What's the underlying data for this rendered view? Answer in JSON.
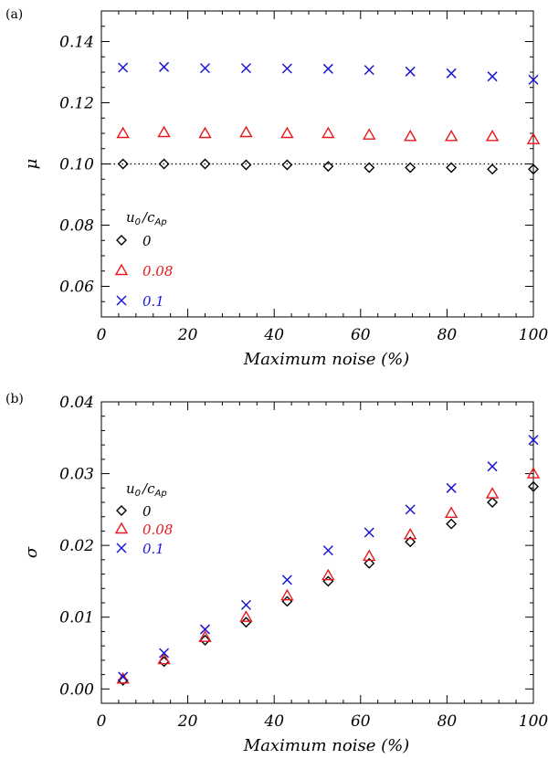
{
  "chart_data": [
    {
      "type": "scatter",
      "panel_label": "(a)",
      "xlabel": "Maximum noise (%)",
      "ylabel": "μ",
      "xlim": [
        0,
        100
      ],
      "ylim": [
        0.05,
        0.15
      ],
      "xticks": [
        0,
        20,
        40,
        60,
        80,
        100
      ],
      "yticks": [
        0.06,
        0.08,
        0.1,
        0.12,
        0.14
      ],
      "ytick_labels": [
        "0.06",
        "0.08",
        "0.10",
        "0.12",
        "0.14"
      ],
      "reference_line": {
        "y": 0.1,
        "style": "dotted"
      },
      "legend": {
        "title_main": "u",
        "title_sub0": "0",
        "title_slash": "/",
        "title_c": "c",
        "title_subAp": "Ap",
        "placement": "lower-left"
      },
      "x": [
        5,
        14.5,
        24,
        33.5,
        43,
        52.5,
        62,
        71.5,
        81,
        90.5,
        100
      ],
      "series": [
        {
          "name": "0",
          "marker": "diamond",
          "color": "#000000",
          "values": [
            0.1,
            0.1,
            0.1,
            0.0997,
            0.0997,
            0.0992,
            0.0988,
            0.0988,
            0.0988,
            0.0983,
            0.0983
          ]
        },
        {
          "name": "0.08",
          "marker": "triangle",
          "color": "#e8191c",
          "values": [
            0.11,
            0.1103,
            0.11,
            0.1103,
            0.11,
            0.11,
            0.1095,
            0.109,
            0.109,
            0.109,
            0.108
          ]
        },
        {
          "name": "0.1",
          "marker": "cross",
          "color": "#1a16d4",
          "values": [
            0.1315,
            0.1317,
            0.1313,
            0.1313,
            0.1312,
            0.1311,
            0.1307,
            0.1302,
            0.1296,
            0.1286,
            0.1275
          ]
        }
      ]
    },
    {
      "type": "scatter",
      "panel_label": "(b)",
      "xlabel": "Maximum noise (%)",
      "ylabel": "σ",
      "xlim": [
        0,
        100
      ],
      "ylim": [
        -0.002,
        0.04
      ],
      "xticks": [
        0,
        20,
        40,
        60,
        80,
        100
      ],
      "yticks": [
        0.0,
        0.01,
        0.02,
        0.03,
        0.04
      ],
      "ytick_labels": [
        "0.00",
        "0.01",
        "0.02",
        "0.03",
        "0.04"
      ],
      "legend": {
        "title_main": "u",
        "title_sub0": "0",
        "title_slash": "/",
        "title_c": "c",
        "title_subAp": "Ap",
        "placement": "upper-left"
      },
      "x": [
        5,
        14.5,
        24,
        33.5,
        43,
        52.5,
        62,
        71.5,
        81,
        90.5,
        100
      ],
      "series": [
        {
          "name": "0",
          "marker": "diamond",
          "color": "#000000",
          "values": [
            0.0012,
            0.0038,
            0.0068,
            0.0093,
            0.0122,
            0.015,
            0.0175,
            0.0205,
            0.023,
            0.026,
            0.0282
          ]
        },
        {
          "name": "0.08",
          "marker": "triangle",
          "color": "#e8191c",
          "values": [
            0.0014,
            0.0041,
            0.0072,
            0.01,
            0.013,
            0.0158,
            0.0185,
            0.0215,
            0.0245,
            0.0272,
            0.03
          ]
        },
        {
          "name": "0.1",
          "marker": "cross",
          "color": "#1a16d4",
          "values": [
            0.0017,
            0.005,
            0.0083,
            0.0117,
            0.0152,
            0.0193,
            0.0218,
            0.025,
            0.028,
            0.031,
            0.0347
          ]
        }
      ]
    }
  ]
}
